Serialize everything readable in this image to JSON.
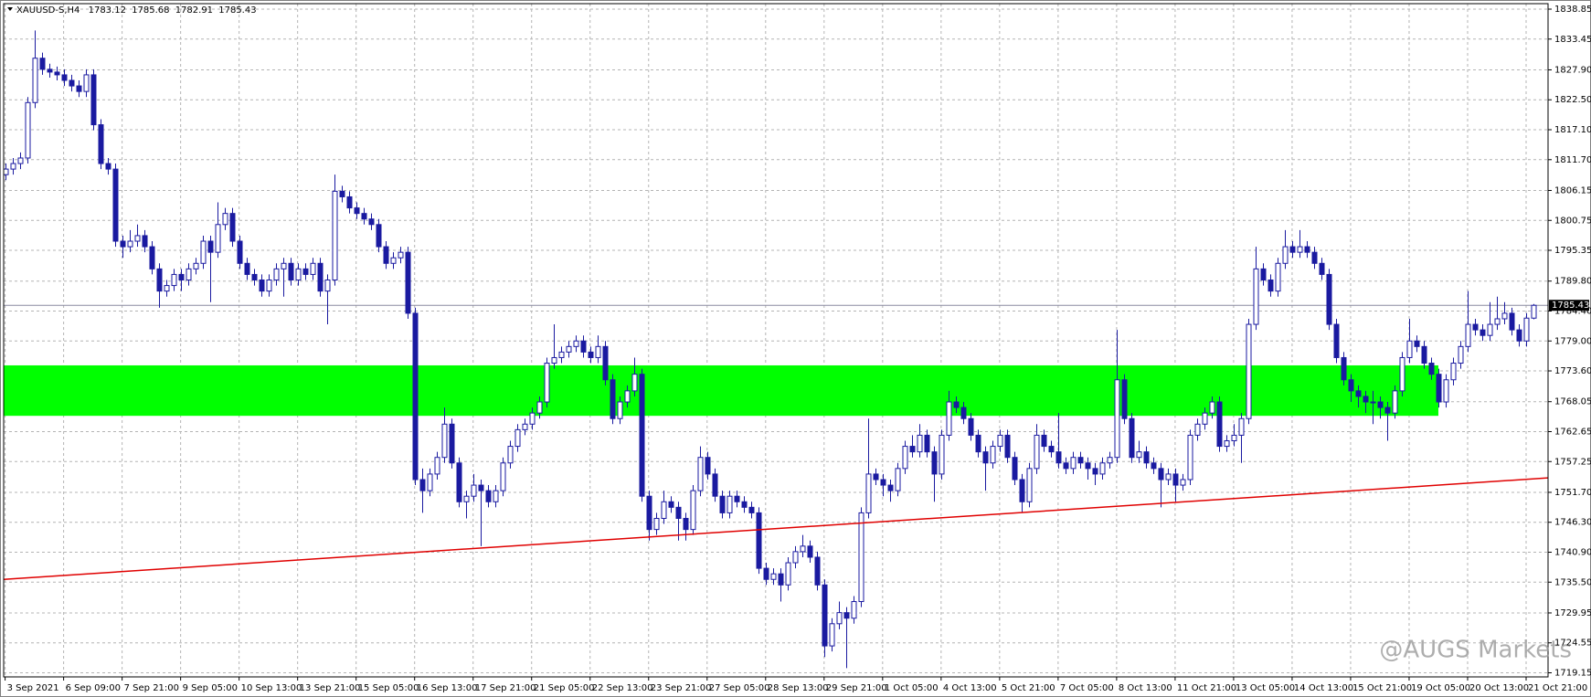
{
  "chart_data": {
    "type": "candlestick",
    "title": "XAUUSD-S,H4",
    "watermark": "@AUGS Markets",
    "color": "#1a1aa0",
    "grid": true,
    "ylim": [
      1718.41,
      1839.84
    ],
    "xlim": [
      -0.2,
      211
    ],
    "yticks": [
      1838.85,
      1833.45,
      {
        "value": 1827.9,
        "label": "1827.90"
      },
      {
        "value": 1822.5,
        "label": "1822.50"
      },
      {
        "value": 1817.1,
        "label": "1817.10"
      },
      {
        "value": 1811.7,
        "label": "1811.70"
      },
      1806.15,
      1800.75,
      1795.35,
      {
        "value": 1789.8,
        "label": "1789.80"
      },
      {
        "value": 1784.4,
        "label": "1784.40"
      },
      {
        "value": 1779,
        "label": "1779.00"
      },
      {
        "value": 1773.6,
        "label": "1773.60"
      },
      1768.05,
      1762.65,
      1757.25,
      {
        "value": 1751.7,
        "label": "1751.70"
      },
      {
        "value": 1746.3,
        "label": "1746.30"
      },
      {
        "value": 1740.9,
        "label": "1740.90"
      },
      {
        "value": 1735.5,
        "label": "1735.50"
      },
      1729.95,
      1724.55,
      1719.15
    ],
    "xticks": [
      {
        "value": 0,
        "label": "3 Sep 2021"
      },
      {
        "value": 8,
        "label": "6 Sep 09:00"
      },
      {
        "value": 16,
        "label": "7 Sep 21:00"
      },
      {
        "value": 24,
        "label": "9 Sep 05:00"
      },
      {
        "value": 32,
        "label": "10 Sep 13:00"
      },
      {
        "value": 40,
        "label": "13 Sep 21:00"
      },
      {
        "value": 48,
        "label": "15 Sep 05:00"
      },
      {
        "value": 56,
        "label": "16 Sep 13:00"
      },
      {
        "value": 64,
        "label": "17 Sep 21:00"
      },
      {
        "value": 72,
        "label": "21 Sep 05:00"
      },
      {
        "value": 80,
        "label": "22 Sep 13:00"
      },
      {
        "value": 88,
        "label": "23 Sep 21:00"
      },
      {
        "value": 96,
        "label": "27 Sep 05:00"
      },
      {
        "value": 104,
        "label": "28 Sep 13:00"
      },
      {
        "value": 112,
        "label": "29 Sep 21:00"
      },
      {
        "value": 120,
        "label": "1 Oct 05:00"
      },
      {
        "value": 128,
        "label": "4 Oct 13:00"
      },
      {
        "value": 136,
        "label": "5 Oct 21:00"
      },
      {
        "value": 144,
        "label": "7 Oct 05:00"
      },
      {
        "value": 152,
        "label": "8 Oct 13:00"
      },
      {
        "value": 160,
        "label": "11 Oct 21:00"
      },
      {
        "value": 168,
        "label": "13 Oct 05:00"
      },
      {
        "value": 176,
        "label": "14 Oct 13:00"
      },
      {
        "value": 184,
        "label": "15 Oct 21:00"
      },
      {
        "value": 192,
        "label": "19 Oct 05:00"
      },
      {
        "value": 200,
        "label": "20 Oct 13:00"
      },
      {
        "value": 208,
        "label": "21 Oct 21:00"
      }
    ],
    "zone": {
      "low": 1765.5,
      "high": 1774.6,
      "start": -0.2,
      "end": 196,
      "color": "#00ff00"
    },
    "trendline": {
      "start": [
        -0.2,
        1736
      ],
      "end": [
        211,
        1754.3
      ],
      "color": "#e00000"
    },
    "ohlc": [
      [
        1809,
        1811,
        1808,
        1810
      ],
      [
        1810,
        1812,
        1809,
        1811
      ],
      [
        1811,
        1813,
        1810,
        1812
      ],
      [
        1812,
        1823,
        1811,
        1822
      ],
      [
        1822,
        1835,
        1821,
        1830
      ],
      [
        1830,
        1831,
        1827,
        1828
      ],
      [
        1828,
        1829,
        1826.5,
        1827.5
      ],
      [
        1827.5,
        1828.5,
        1826,
        1827
      ],
      [
        1827,
        1828,
        1825,
        1826
      ],
      [
        1826,
        1827,
        1824,
        1825
      ],
      [
        1825,
        1826,
        1823,
        1824
      ],
      [
        1824,
        1828,
        1823,
        1827
      ],
      [
        1827,
        1828,
        1817,
        1818
      ],
      [
        1818,
        1819,
        1810,
        1811
      ],
      [
        1811,
        1812,
        1809,
        1810
      ],
      [
        1810,
        1811,
        1796,
        1797
      ],
      [
        1797,
        1798,
        1794,
        1796
      ],
      [
        1796,
        1799,
        1795,
        1797
      ],
      [
        1797,
        1800,
        1796,
        1798
      ],
      [
        1798,
        1799,
        1795,
        1796
      ],
      [
        1796,
        1797,
        1791,
        1792
      ],
      [
        1792,
        1793,
        1785,
        1788
      ],
      [
        1788,
        1790,
        1787,
        1789
      ],
      [
        1789,
        1792,
        1788,
        1791
      ],
      [
        1791,
        1792,
        1788,
        1790
      ],
      [
        1790,
        1793,
        1789,
        1792
      ],
      [
        1792,
        1794,
        1791,
        1793
      ],
      [
        1793,
        1798,
        1792,
        1797
      ],
      [
        1797,
        1798,
        1786,
        1795
      ],
      [
        1795,
        1804,
        1794,
        1800
      ],
      [
        1800,
        1803,
        1799,
        1802
      ],
      [
        1802,
        1803,
        1796,
        1797
      ],
      [
        1797,
        1798,
        1792,
        1793
      ],
      [
        1793,
        1794,
        1790,
        1791
      ],
      [
        1791,
        1792,
        1789,
        1790
      ],
      [
        1790,
        1791,
        1787,
        1788
      ],
      [
        1788,
        1791,
        1787,
        1790
      ],
      [
        1790,
        1793,
        1789,
        1792
      ],
      [
        1792,
        1794,
        1787,
        1793
      ],
      [
        1793,
        1794,
        1789,
        1790
      ],
      [
        1790,
        1793,
        1789,
        1792
      ],
      [
        1792,
        1793,
        1790,
        1791
      ],
      [
        1791,
        1794,
        1790,
        1793
      ],
      [
        1793,
        1794,
        1787,
        1788
      ],
      [
        1788,
        1791,
        1782,
        1790
      ],
      [
        1790,
        1809,
        1789,
        1806
      ],
      [
        1806,
        1807,
        1804,
        1805
      ],
      [
        1805,
        1806,
        1802,
        1803
      ],
      [
        1803,
        1804,
        1801,
        1802
      ],
      [
        1802,
        1803,
        1800,
        1801
      ],
      [
        1801,
        1802,
        1799,
        1800
      ],
      [
        1800,
        1801,
        1795,
        1796
      ],
      [
        1796,
        1797,
        1792,
        1793
      ],
      [
        1793,
        1795,
        1792,
        1794
      ],
      [
        1794,
        1796,
        1793,
        1795
      ],
      [
        1795,
        1796,
        1783,
        1784
      ],
      [
        1784,
        1785,
        1753,
        1754
      ],
      [
        1754,
        1756,
        1748,
        1752
      ],
      [
        1752,
        1756,
        1751,
        1755
      ],
      [
        1755,
        1759,
        1754,
        1758
      ],
      [
        1758,
        1767,
        1757,
        1764
      ],
      [
        1764,
        1765,
        1756,
        1757
      ],
      [
        1757,
        1758,
        1749,
        1750
      ],
      [
        1750,
        1752,
        1747,
        1751
      ],
      [
        1751,
        1755,
        1750,
        1753
      ],
      [
        1753,
        1754,
        1742,
        1752
      ],
      [
        1752,
        1753,
        1749,
        1750
      ],
      [
        1750,
        1753,
        1749,
        1752
      ],
      [
        1752,
        1758,
        1751,
        1757
      ],
      [
        1757,
        1761,
        1756,
        1760
      ],
      [
        1760,
        1764,
        1759,
        1763
      ],
      [
        1763,
        1765,
        1762,
        1764
      ],
      [
        1764,
        1767,
        1763,
        1766
      ],
      [
        1766,
        1769,
        1765,
        1768
      ],
      [
        1768,
        1776,
        1767,
        1775
      ],
      [
        1775,
        1782,
        1774,
        1776
      ],
      [
        1776,
        1778,
        1775,
        1777
      ],
      [
        1777,
        1779,
        1776,
        1778
      ],
      [
        1778,
        1780,
        1777,
        1779
      ],
      [
        1779,
        1780,
        1776,
        1777
      ],
      [
        1777,
        1778,
        1775,
        1776
      ],
      [
        1776,
        1780,
        1775,
        1778
      ],
      [
        1778,
        1779,
        1771,
        1772
      ],
      [
        1772,
        1773,
        1764,
        1765
      ],
      [
        1765,
        1769,
        1764,
        1768
      ],
      [
        1768,
        1771,
        1767,
        1770
      ],
      [
        1770,
        1776,
        1769,
        1773
      ],
      [
        1773,
        1774,
        1750,
        1751
      ],
      [
        1751,
        1752,
        1743,
        1745
      ],
      [
        1745,
        1748,
        1744,
        1747
      ],
      [
        1747,
        1752,
        1746,
        1750
      ],
      [
        1750,
        1751,
        1748,
        1749
      ],
      [
        1749,
        1750,
        1743,
        1747
      ],
      [
        1747,
        1748,
        1743,
        1745
      ],
      [
        1745,
        1753,
        1744,
        1752
      ],
      [
        1752,
        1760,
        1751,
        1758
      ],
      [
        1758,
        1759,
        1754,
        1755
      ],
      [
        1755,
        1756,
        1750,
        1751
      ],
      [
        1751,
        1752,
        1747,
        1748
      ],
      [
        1748,
        1752,
        1747,
        1751
      ],
      [
        1751,
        1752,
        1749,
        1750
      ],
      [
        1750,
        1751,
        1748,
        1749
      ],
      [
        1749,
        1750,
        1747,
        1748
      ],
      [
        1748,
        1749,
        1737,
        1738
      ],
      [
        1738,
        1739,
        1735,
        1736
      ],
      [
        1736,
        1738,
        1735,
        1737
      ],
      [
        1737,
        1738,
        1732,
        1735
      ],
      [
        1735,
        1740,
        1734,
        1739
      ],
      [
        1739,
        1742,
        1738,
        1741
      ],
      [
        1741,
        1744,
        1740,
        1742
      ],
      [
        1742,
        1743,
        1739,
        1740
      ],
      [
        1740,
        1741,
        1734,
        1735
      ],
      [
        1735,
        1736,
        1722,
        1724
      ],
      [
        1724,
        1729,
        1723,
        1728
      ],
      [
        1728,
        1732,
        1727,
        1730
      ],
      [
        1730,
        1731,
        1720,
        1729
      ],
      [
        1729,
        1733,
        1728,
        1732
      ],
      [
        1732,
        1749,
        1731,
        1748
      ],
      [
        1748,
        1765,
        1747,
        1755
      ],
      [
        1755,
        1756,
        1753,
        1754
      ],
      [
        1754,
        1755,
        1751,
        1753
      ],
      [
        1753,
        1754,
        1750,
        1752
      ],
      [
        1752,
        1757,
        1751,
        1756
      ],
      [
        1756,
        1761,
        1755,
        1760
      ],
      [
        1760,
        1762,
        1758,
        1759
      ],
      [
        1759,
        1764,
        1758,
        1762
      ],
      [
        1762,
        1763,
        1758,
        1759
      ],
      [
        1759,
        1760,
        1750,
        1755
      ],
      [
        1755,
        1763,
        1754,
        1762
      ],
      [
        1762,
        1770,
        1761,
        1768
      ],
      [
        1768,
        1769,
        1766,
        1767
      ],
      [
        1767,
        1768,
        1764,
        1765
      ],
      [
        1765,
        1766,
        1761,
        1762
      ],
      [
        1762,
        1763,
        1758,
        1759
      ],
      [
        1759,
        1760,
        1752,
        1757
      ],
      [
        1757,
        1761,
        1756,
        1760
      ],
      [
        1760,
        1763,
        1759,
        1762
      ],
      [
        1762,
        1763,
        1757,
        1758
      ],
      [
        1758,
        1759,
        1753,
        1754
      ],
      [
        1754,
        1755,
        1748,
        1750
      ],
      [
        1750,
        1757,
        1749,
        1756
      ],
      [
        1756,
        1764,
        1755,
        1762
      ],
      [
        1762,
        1763,
        1759,
        1760
      ],
      [
        1760,
        1761,
        1758,
        1759
      ],
      [
        1759,
        1766,
        1756,
        1757
      ],
      [
        1757,
        1758,
        1755,
        1756
      ],
      [
        1756,
        1759,
        1755,
        1758
      ],
      [
        1758,
        1759,
        1756,
        1757
      ],
      [
        1757,
        1758,
        1754,
        1756
      ],
      [
        1756,
        1757,
        1753,
        1755
      ],
      [
        1755,
        1758,
        1754,
        1757
      ],
      [
        1757,
        1759,
        1756,
        1758
      ],
      [
        1758,
        1781,
        1757,
        1772
      ],
      [
        1772,
        1773,
        1764,
        1765
      ],
      [
        1765,
        1766,
        1757,
        1758
      ],
      [
        1758,
        1761,
        1757,
        1759
      ],
      [
        1759,
        1760,
        1756,
        1757
      ],
      [
        1757,
        1758,
        1755,
        1756
      ],
      [
        1756,
        1757,
        1749,
        1754
      ],
      [
        1754,
        1756,
        1753,
        1755
      ],
      [
        1755,
        1756,
        1750,
        1753
      ],
      [
        1753,
        1755,
        1752,
        1754
      ],
      [
        1754,
        1763,
        1753,
        1762
      ],
      [
        1762,
        1765,
        1761,
        1764
      ],
      [
        1764,
        1767,
        1763,
        1766
      ],
      [
        1766,
        1769,
        1765,
        1768
      ],
      [
        1768,
        1769,
        1759,
        1760
      ],
      [
        1760,
        1762,
        1759,
        1761
      ],
      [
        1761,
        1764,
        1760,
        1762
      ],
      [
        1762,
        1766,
        1757,
        1765
      ],
      [
        1765,
        1783,
        1764,
        1782
      ],
      [
        1782,
        1796,
        1781,
        1792
      ],
      [
        1792,
        1793,
        1789,
        1790
      ],
      [
        1790,
        1791,
        1787,
        1788
      ],
      [
        1788,
        1794,
        1787,
        1793
      ],
      [
        1793,
        1799,
        1792,
        1796
      ],
      [
        1796,
        1797,
        1794,
        1795
      ],
      [
        1795,
        1799,
        1794,
        1796
      ],
      [
        1796,
        1797,
        1794,
        1795
      ],
      [
        1795,
        1796,
        1792,
        1793
      ],
      [
        1793,
        1794,
        1790,
        1791
      ],
      [
        1791,
        1792,
        1781,
        1782
      ],
      [
        1782,
        1783,
        1775,
        1776
      ],
      [
        1776,
        1777,
        1771,
        1772
      ],
      [
        1772,
        1773,
        1768,
        1770
      ],
      [
        1770,
        1771,
        1767,
        1769
      ],
      [
        1769,
        1770,
        1766,
        1768
      ],
      [
        1768,
        1770,
        1764,
        1768
      ],
      [
        1768,
        1769,
        1765,
        1767
      ],
      [
        1767,
        1768,
        1761,
        1766
      ],
      [
        1766,
        1771,
        1765,
        1770
      ],
      [
        1770,
        1777,
        1769,
        1776
      ],
      [
        1776,
        1783,
        1775,
        1779
      ],
      [
        1779,
        1780,
        1777,
        1778
      ],
      [
        1778,
        1779,
        1774,
        1775
      ],
      [
        1775,
        1776,
        1772,
        1773
      ],
      [
        1773,
        1774,
        1767,
        1768
      ],
      [
        1768,
        1773,
        1767,
        1772
      ],
      [
        1772,
        1776,
        1771,
        1775
      ],
      [
        1775,
        1779,
        1774,
        1778
      ],
      [
        1778,
        1788,
        1777,
        1782
      ],
      [
        1782,
        1783,
        1780,
        1781
      ],
      [
        1781,
        1782,
        1779,
        1780
      ],
      [
        1780,
        1786,
        1779,
        1782
      ],
      [
        1782,
        1787,
        1781,
        1783
      ],
      [
        1783,
        1786,
        1782,
        1784
      ],
      [
        1784,
        1785,
        1780,
        1781
      ],
      [
        1781,
        1782,
        1778,
        1779
      ],
      [
        1779,
        1784,
        1778,
        1783.12
      ],
      [
        1783.12,
        1785.68,
        1782.91,
        1785.43
      ]
    ]
  }
}
